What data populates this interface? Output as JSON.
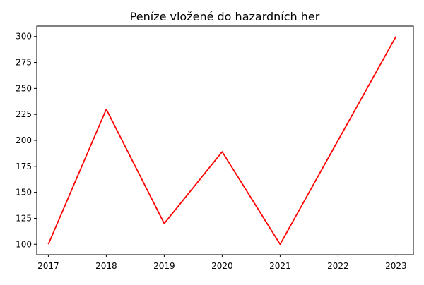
{
  "chart_data": {
    "type": "line",
    "title": "Peníze vložené do hazardních her",
    "xlabel": "",
    "ylabel": "",
    "x": [
      2017,
      2018,
      2019,
      2020,
      2021,
      2022,
      2023
    ],
    "series": [
      {
        "values": [
          100,
          230,
          120,
          189,
          100,
          200,
          300
        ],
        "color": "#ff0000"
      }
    ],
    "xticks": [
      "2017",
      "2018",
      "2019",
      "2020",
      "2021",
      "2022",
      "2023"
    ],
    "yticks": [
      "100",
      "125",
      "150",
      "175",
      "200",
      "225",
      "250",
      "275",
      "300"
    ],
    "xlim": [
      2016.8,
      2023.3
    ],
    "ylim": [
      90,
      310
    ],
    "grid": false,
    "legend": "none"
  }
}
